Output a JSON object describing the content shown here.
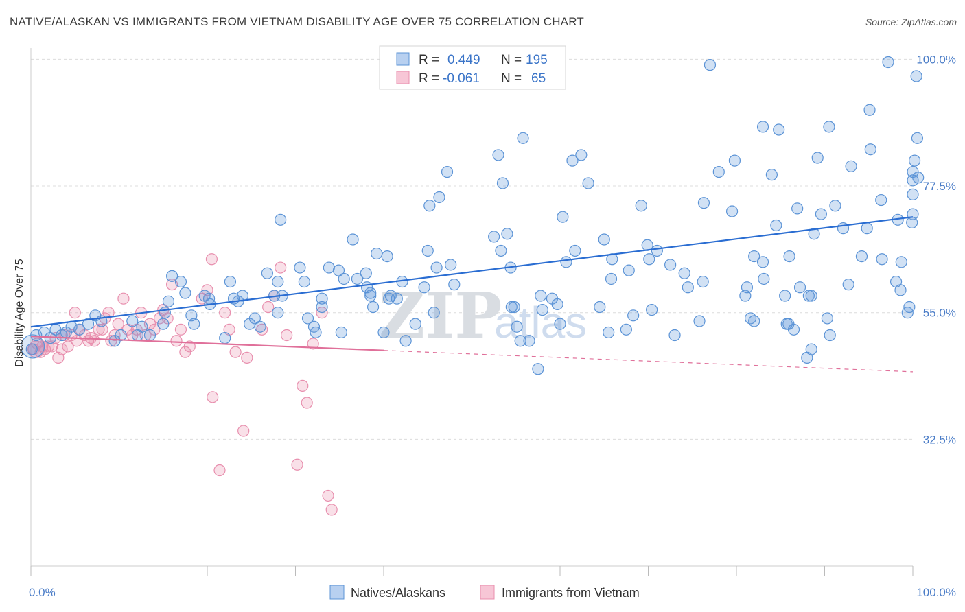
{
  "title": "NATIVE/ALASKAN VS IMMIGRANTS FROM VIETNAM DISABILITY AGE OVER 75 CORRELATION CHART",
  "source": "Source: ZipAtlas.com",
  "watermark_a": "ZIP",
  "watermark_b": "atlas",
  "chart_data": {
    "type": "scatter",
    "ylabel": "Disability Age Over 75",
    "xlim": [
      0,
      100
    ],
    "ylim": [
      10,
      102
    ],
    "x_tick_labels": [
      "0.0%",
      "100.0%"
    ],
    "y_ticks": [
      32.5,
      55.0,
      77.5,
      100.0
    ],
    "y_tick_labels": [
      "32.5%",
      "55.0%",
      "77.5%",
      "100.0%"
    ],
    "grid": true,
    "legend_position": "top-center",
    "colors": {
      "natives": "#5b93d6",
      "vietnam": "#e88fae",
      "natives_line": "#2a6dd2",
      "vietnam_line": "#e0709a"
    },
    "legend": [
      {
        "r_label": "R =",
        "r_value": "0.449",
        "n_label": "N =",
        "n_value": "195"
      },
      {
        "r_label": "R =",
        "r_value": "-0.061",
        "n_label": "N =",
        "n_value": "65"
      }
    ],
    "series": [
      {
        "name": "Natives/Alaskans",
        "trend": {
          "x": [
            0,
            100
          ],
          "y": [
            52.5,
            72.0
          ]
        },
        "points": [
          [
            0.1,
            48.5
          ],
          [
            0.6,
            51
          ],
          [
            1.5,
            51.5
          ],
          [
            2.2,
            50.5
          ],
          [
            2.8,
            52
          ],
          [
            3.5,
            51
          ],
          [
            4,
            51.5
          ],
          [
            4.6,
            52.5
          ],
          [
            5.5,
            52
          ],
          [
            6.5,
            53
          ],
          [
            7.3,
            54.5
          ],
          [
            8,
            53.5
          ],
          [
            9.5,
            50
          ],
          [
            10.2,
            51
          ],
          [
            11.5,
            53.5
          ],
          [
            12.1,
            51
          ],
          [
            12.6,
            52.5
          ],
          [
            13.5,
            51
          ],
          [
            15.2,
            55
          ],
          [
            15.6,
            57
          ],
          [
            16,
            61.5
          ],
          [
            15,
            53
          ],
          [
            17,
            60.5
          ],
          [
            17.5,
            58.5
          ],
          [
            18.2,
            54.5
          ],
          [
            18.5,
            53
          ],
          [
            19.7,
            58
          ],
          [
            20.2,
            57.5
          ],
          [
            20.3,
            56.5
          ],
          [
            22,
            50.5
          ],
          [
            23,
            57.5
          ],
          [
            23.5,
            57
          ],
          [
            24,
            58
          ],
          [
            24.8,
            53
          ],
          [
            25.4,
            54
          ],
          [
            22.6,
            60.5
          ],
          [
            26,
            52.5
          ],
          [
            27.6,
            58
          ],
          [
            28,
            60.5
          ],
          [
            28,
            55
          ],
          [
            26.8,
            62
          ],
          [
            28.3,
            71.5
          ],
          [
            28.5,
            58
          ],
          [
            30.5,
            63
          ],
          [
            31,
            60.5
          ],
          [
            31.4,
            54
          ],
          [
            32.1,
            52.5
          ],
          [
            32.3,
            51.5
          ],
          [
            33,
            57.5
          ],
          [
            33.8,
            63
          ],
          [
            34.9,
            62.5
          ],
          [
            33,
            56
          ],
          [
            35.2,
            51.5
          ],
          [
            35.5,
            61
          ],
          [
            36.5,
            68
          ],
          [
            37,
            61
          ],
          [
            38,
            62
          ],
          [
            38.1,
            59.5
          ],
          [
            38.8,
            56
          ],
          [
            38.5,
            58.5
          ],
          [
            38.5,
            58
          ],
          [
            39.2,
            65.5
          ],
          [
            40,
            51.5
          ],
          [
            40.8,
            58
          ],
          [
            40.4,
            65
          ],
          [
            41.5,
            57.5
          ],
          [
            42.1,
            60.5
          ],
          [
            42.5,
            50
          ],
          [
            43.6,
            53
          ],
          [
            44.6,
            59.5
          ],
          [
            45,
            66
          ],
          [
            45.7,
            55
          ],
          [
            46,
            63
          ],
          [
            45.2,
            74
          ],
          [
            46.3,
            75.5
          ],
          [
            47.2,
            80
          ],
          [
            47.6,
            63.5
          ],
          [
            48,
            60
          ],
          [
            40.6,
            57.5
          ],
          [
            52.5,
            68.5
          ],
          [
            53,
            83
          ],
          [
            53.3,
            66
          ],
          [
            53.5,
            78
          ],
          [
            54,
            69
          ],
          [
            54.5,
            56
          ],
          [
            54.8,
            56
          ],
          [
            54.4,
            63
          ],
          [
            55.8,
            86
          ],
          [
            55.1,
            52.5
          ],
          [
            55.5,
            50
          ],
          [
            56.5,
            50
          ],
          [
            57.5,
            45
          ],
          [
            57.8,
            58
          ],
          [
            58,
            55.5
          ],
          [
            59.7,
            56.5
          ],
          [
            59.1,
            57.5
          ],
          [
            60,
            53
          ],
          [
            60.3,
            72
          ],
          [
            60.7,
            64
          ],
          [
            61.7,
            66
          ],
          [
            61.4,
            82
          ],
          [
            62.4,
            83
          ],
          [
            63.2,
            78
          ],
          [
            64.5,
            56
          ],
          [
            65,
            68
          ],
          [
            65.5,
            51.5
          ],
          [
            65.8,
            61
          ],
          [
            65.9,
            64.5
          ],
          [
            67.5,
            52
          ],
          [
            67.8,
            62.5
          ],
          [
            68.3,
            54.5
          ],
          [
            69.2,
            74
          ],
          [
            69.9,
            67
          ],
          [
            70.1,
            64.5
          ],
          [
            70.4,
            55.5
          ],
          [
            71,
            66
          ],
          [
            73,
            51
          ],
          [
            72.5,
            63.5
          ],
          [
            74.5,
            59.5
          ],
          [
            74.1,
            62
          ],
          [
            75.8,
            53.5
          ],
          [
            76.2,
            60.5
          ],
          [
            76.3,
            74.5
          ],
          [
            77,
            99
          ],
          [
            78,
            80
          ],
          [
            79.5,
            73
          ],
          [
            79.8,
            82
          ],
          [
            81,
            58
          ],
          [
            81.6,
            54
          ],
          [
            81.2,
            59.5
          ],
          [
            82,
            53.5
          ],
          [
            82,
            65
          ],
          [
            83,
            64
          ],
          [
            83,
            88
          ],
          [
            83.1,
            61
          ],
          [
            84,
            79.5
          ],
          [
            84.5,
            70.5
          ],
          [
            84.8,
            87.5
          ],
          [
            85.5,
            58
          ],
          [
            85.7,
            53
          ],
          [
            85.9,
            53
          ],
          [
            86,
            65
          ],
          [
            86.5,
            52
          ],
          [
            86.9,
            73.5
          ],
          [
            87.2,
            59.5
          ],
          [
            88,
            47
          ],
          [
            88.2,
            58
          ],
          [
            88.5,
            58
          ],
          [
            88.8,
            69
          ],
          [
            88.5,
            48.5
          ],
          [
            89.2,
            82.5
          ],
          [
            90.3,
            54
          ],
          [
            90.6,
            51
          ],
          [
            89.6,
            72.5
          ],
          [
            90.5,
            88
          ],
          [
            91.2,
            74
          ],
          [
            92.1,
            70
          ],
          [
            92.7,
            60
          ],
          [
            93,
            81
          ],
          [
            94.2,
            65
          ],
          [
            94.8,
            70
          ],
          [
            95.2,
            84
          ],
          [
            95.1,
            91
          ],
          [
            96.5,
            64.5
          ],
          [
            96.4,
            75
          ],
          [
            97.2,
            99.5
          ],
          [
            98.3,
            71.5
          ],
          [
            98.1,
            60.5
          ],
          [
            98.6,
            59
          ],
          [
            98.7,
            64
          ],
          [
            99.4,
            55
          ],
          [
            99.6,
            56
          ],
          [
            99.9,
            71
          ],
          [
            100,
            72.5
          ],
          [
            100,
            76
          ],
          [
            100,
            78.5
          ],
          [
            100,
            80
          ],
          [
            100.2,
            82
          ],
          [
            100.4,
            97
          ],
          [
            100.5,
            86
          ],
          [
            100.6,
            79
          ]
        ]
      },
      {
        "name": "Immigrants from Vietnam",
        "trend": {
          "x": [
            0,
            40
          ],
          "y": [
            50.8,
            48.3
          ]
        },
        "trend_extension": {
          "x": [
            40,
            100
          ],
          "y": [
            48.3,
            44.5
          ]
        },
        "points": [
          [
            0.3,
            48.5
          ],
          [
            0.7,
            49.5
          ],
          [
            1.1,
            48
          ],
          [
            1.3,
            49
          ],
          [
            1.6,
            48.5
          ],
          [
            2,
            49
          ],
          [
            2.4,
            49
          ],
          [
            2.8,
            50.5
          ],
          [
            3.1,
            47
          ],
          [
            3.5,
            48.5
          ],
          [
            3.8,
            51
          ],
          [
            4.2,
            49
          ],
          [
            4.6,
            51
          ],
          [
            5,
            55
          ],
          [
            5.2,
            50
          ],
          [
            5.5,
            52
          ],
          [
            6.1,
            51
          ],
          [
            6.5,
            50
          ],
          [
            6.8,
            50.5
          ],
          [
            7.2,
            50
          ],
          [
            7.7,
            52
          ],
          [
            8.1,
            52
          ],
          [
            8.4,
            54
          ],
          [
            8.8,
            55
          ],
          [
            9.1,
            50
          ],
          [
            9.5,
            51
          ],
          [
            9.9,
            53
          ],
          [
            10.5,
            57.5
          ],
          [
            11,
            52
          ],
          [
            11.5,
            51
          ],
          [
            12,
            52
          ],
          [
            12.5,
            55
          ],
          [
            13,
            51
          ],
          [
            13.5,
            53
          ],
          [
            14,
            52
          ],
          [
            14.6,
            54
          ],
          [
            15,
            55.5
          ],
          [
            15.5,
            54
          ],
          [
            16,
            60
          ],
          [
            16.5,
            50
          ],
          [
            17,
            52
          ],
          [
            17.5,
            48
          ],
          [
            18,
            49
          ],
          [
            19.4,
            57.5
          ],
          [
            20,
            59
          ],
          [
            20.5,
            64.5
          ],
          [
            20.6,
            40
          ],
          [
            21.4,
            27
          ],
          [
            22,
            55
          ],
          [
            22.5,
            52
          ],
          [
            23.2,
            48
          ],
          [
            24.1,
            34
          ],
          [
            24.5,
            47
          ],
          [
            26.2,
            52
          ],
          [
            26.9,
            56
          ],
          [
            27.6,
            58
          ],
          [
            28.3,
            63
          ],
          [
            29,
            51
          ],
          [
            30.2,
            28
          ],
          [
            30.8,
            42
          ],
          [
            31.3,
            39
          ],
          [
            32,
            49.5
          ],
          [
            33,
            55
          ],
          [
            33.7,
            22.5
          ],
          [
            34.1,
            20
          ]
        ]
      }
    ]
  },
  "bottom_legend": [
    "Natives/Alaskans",
    "Immigrants from Vietnam"
  ]
}
